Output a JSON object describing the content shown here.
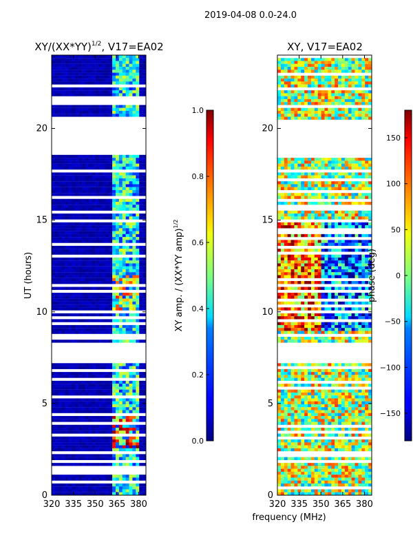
{
  "figure": {
    "suptitle": "2019-04-08 0.0-24.0",
    "x_label": "frequency (MHz)"
  },
  "chart_data": [
    {
      "type": "heatmap",
      "title_main": "XY/(XX*YY)",
      "title_sup": "1/2",
      "title_tail": ", V17=EA02",
      "xlabel": "",
      "ylabel": "UT (hours)",
      "xlim": [
        320,
        385
      ],
      "ylim": [
        0,
        24
      ],
      "x_ticks": [
        320,
        335,
        350,
        365,
        380
      ],
      "y_ticks": [
        0,
        5,
        10,
        15,
        20
      ],
      "colorbar": {
        "label_main": "XY amp. / (XX*YY amp)",
        "label_sup": "1/2",
        "range": [
          0.0,
          1.0
        ],
        "ticks": [
          "0.0",
          "0.2",
          "0.4",
          "0.6",
          "0.8",
          "1.0"
        ],
        "colormap": "jet"
      },
      "gaps_hours": [
        [
          7.2,
          8.3
        ],
        [
          18.5,
          20.5
        ]
      ],
      "active_band_MHz": [
        362,
        381
      ],
      "value_range": [
        0.0,
        1.0
      ]
    },
    {
      "type": "heatmap",
      "title": "XY, V17=EA02",
      "xlabel": "frequency (MHz)",
      "ylabel": "",
      "xlim": [
        320,
        385
      ],
      "ylim": [
        0,
        24
      ],
      "x_ticks": [
        320,
        335,
        350,
        365,
        380
      ],
      "y_ticks": [
        0,
        5,
        10,
        15,
        20
      ],
      "colorbar": {
        "label": "phase (deg)",
        "range": [
          -180,
          180
        ],
        "ticks": [
          "150",
          "100",
          "50",
          "0",
          "−50",
          "−100",
          "−150"
        ],
        "colormap": "jet"
      },
      "gaps_hours": [
        [
          7.2,
          8.3
        ],
        [
          18.5,
          20.5
        ]
      ],
      "value_range": [
        -180,
        180
      ]
    }
  ]
}
